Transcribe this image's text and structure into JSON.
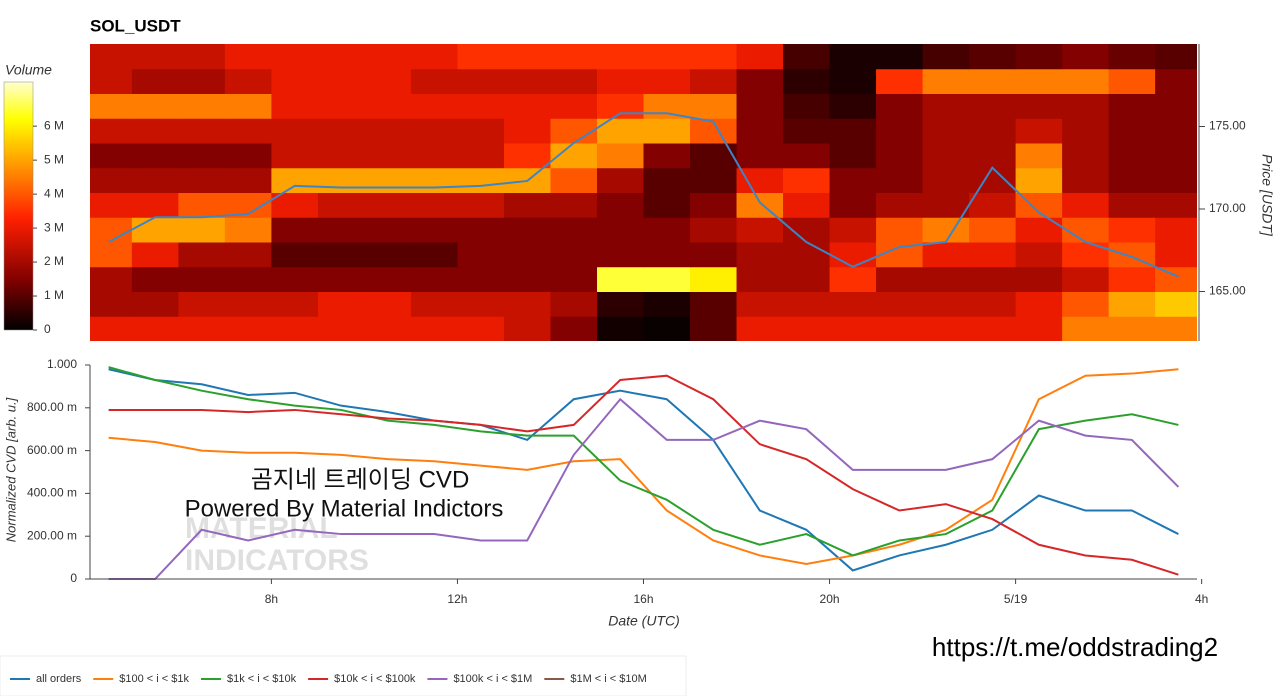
{
  "chart_data": [
    {
      "type": "heatmap",
      "title": "SOL_USDT",
      "y2label": "Price [USDT]",
      "colorbar_label": "Volume",
      "xlim": [
        4.1,
        27.9
      ],
      "ylim": [
        162,
        180
      ],
      "x_bins": [
        4,
        5,
        6,
        7,
        8,
        9,
        10,
        11,
        12,
        13,
        14,
        15,
        16,
        17,
        18,
        19,
        20,
        21,
        22,
        23,
        24,
        25,
        26,
        27,
        28
      ],
      "y_bins": [
        162,
        163.5,
        165,
        166.5,
        168,
        169.5,
        171,
        172.5,
        174,
        175.5,
        177,
        178.5,
        180
      ],
      "yticks": [
        {
          "value": 165,
          "label": "165.00"
        },
        {
          "value": 170,
          "label": "170.00"
        },
        {
          "value": 175,
          "label": "175.00"
        }
      ],
      "zlim": [
        0,
        7.3
      ],
      "zticks": [
        {
          "value": 0,
          "label": "0"
        },
        {
          "value": 1,
          "label": "1 M"
        },
        {
          "value": 2,
          "label": "2 M"
        },
        {
          "value": 3,
          "label": "3 M"
        },
        {
          "value": 4,
          "label": "4 M"
        },
        {
          "value": 5,
          "label": "5 M"
        },
        {
          "value": 6,
          "label": "6 M"
        }
      ],
      "colorscale": [
        [
          0,
          "#000000"
        ],
        [
          0.2,
          "#800000"
        ],
        [
          0.45,
          "#ff2000"
        ],
        [
          0.65,
          "#ff9000"
        ],
        [
          0.85,
          "#ffff00"
        ],
        [
          1,
          "#ffffd0"
        ]
      ],
      "z": [
        [
          3,
          3,
          3,
          3,
          3,
          3,
          3,
          3,
          3,
          2.5,
          1.5,
          0.2,
          0.1,
          1,
          3,
          3,
          3,
          3,
          3,
          3,
          3,
          4.5,
          4.5,
          4.5
        ],
        [
          2,
          2,
          2.5,
          2.5,
          2.5,
          3,
          3,
          2.5,
          2.5,
          2.5,
          2,
          0.5,
          0.3,
          1,
          2.5,
          2.5,
          2.5,
          2.5,
          2.5,
          2.5,
          3,
          4,
          5,
          5.5
        ],
        [
          2,
          1.5,
          1.5,
          1.5,
          1.5,
          1.5,
          1.5,
          1.5,
          1.5,
          1.5,
          1.5,
          6.5,
          6.5,
          6,
          2,
          2,
          3.5,
          2,
          2,
          2,
          2,
          2.5,
          3.5,
          4
        ],
        [
          4,
          3,
          2,
          2,
          1,
          1,
          1,
          1,
          1.5,
          1.5,
          1.5,
          1.5,
          1.5,
          1.5,
          2,
          2,
          3,
          4,
          3,
          3,
          2.5,
          3.5,
          4,
          3
        ],
        [
          4,
          5,
          5,
          4.5,
          1.5,
          1.5,
          1.5,
          1.5,
          1.5,
          1.5,
          1.5,
          1.5,
          1.5,
          2,
          2.5,
          2,
          2.5,
          4,
          4.5,
          4,
          3,
          4,
          3.5,
          3
        ],
        [
          3,
          3,
          4,
          4,
          3,
          2.5,
          2.5,
          2.5,
          2.5,
          2,
          2,
          1.5,
          1,
          1.5,
          4.5,
          3,
          1.5,
          2,
          2,
          2.5,
          4,
          3,
          2,
          2
        ],
        [
          2,
          2,
          2,
          2,
          5,
          5,
          5,
          5,
          5,
          5,
          4,
          2,
          1,
          1,
          3,
          3.5,
          1.5,
          1.5,
          2,
          2,
          5,
          2,
          1.5,
          1.5
        ],
        [
          1.5,
          1.5,
          1.5,
          1.5,
          2.5,
          2.5,
          2.5,
          2.5,
          2.5,
          3.5,
          5,
          4.5,
          1.5,
          1,
          1.5,
          1.5,
          1,
          1.5,
          2,
          2,
          4.5,
          2,
          1.5,
          1.5
        ],
        [
          2.5,
          2.5,
          2.5,
          2.5,
          2.5,
          2.5,
          2.5,
          2.5,
          2.5,
          3,
          4,
          5,
          5,
          4,
          1.5,
          1,
          1,
          1.5,
          2,
          2,
          2.5,
          2,
          1.5,
          1.5
        ],
        [
          4.5,
          4.5,
          4.5,
          4.5,
          3,
          3,
          3,
          3,
          3,
          3,
          3,
          3.5,
          4.5,
          4.5,
          1.5,
          0.8,
          0.5,
          1.5,
          2,
          2,
          2,
          2,
          1.5,
          1.5
        ],
        [
          2.5,
          2,
          2,
          2.5,
          3,
          3,
          3,
          2.5,
          2.5,
          2.5,
          2.5,
          3,
          3,
          2.5,
          1.5,
          0.5,
          0.3,
          3.5,
          4.5,
          4.5,
          4.5,
          4.5,
          4,
          1.5
        ],
        [
          2.5,
          2.5,
          2.5,
          3,
          3,
          3,
          3,
          3,
          3.5,
          3.5,
          3.5,
          3.5,
          3.5,
          3.5,
          3,
          0.8,
          0.3,
          0.3,
          0.8,
          1,
          1.2,
          1.5,
          1.2,
          1
        ]
      ],
      "price_line": {
        "color": "#3d85c6",
        "x": [
          4.5,
          5.5,
          6.5,
          7.5,
          8.5,
          9.5,
          10.5,
          11.5,
          12.5,
          13.5,
          14.5,
          15.5,
          16.5,
          17.5,
          18.5,
          19.5,
          20.5,
          21.5,
          22.5,
          23.5,
          24.5,
          25.5,
          26.5,
          27.5
        ],
        "values": [
          168.0,
          169.5,
          169.5,
          169.7,
          171.4,
          171.3,
          171.3,
          171.3,
          171.4,
          171.7,
          174.0,
          175.8,
          175.8,
          175.3,
          170.4,
          168.0,
          166.5,
          167.7,
          168.0,
          172.5,
          169.8,
          168.0,
          167.1,
          165.9
        ]
      }
    },
    {
      "type": "line",
      "xlabel": "Date (UTC)",
      "ylabel": "Normalized CVD [arb. u.]",
      "xlim": [
        4.1,
        27.9
      ],
      "ylim": [
        0,
        1
      ],
      "xticks": [
        {
          "value": 8,
          "label": "8h"
        },
        {
          "value": 12,
          "label": "12h"
        },
        {
          "value": 16,
          "label": "16h"
        },
        {
          "value": 20,
          "label": "20h"
        },
        {
          "value": 24,
          "label": "5/19"
        },
        {
          "value": 28,
          "label": "4h"
        }
      ],
      "yticks": [
        {
          "value": 0,
          "label": "0"
        },
        {
          "value": 0.2,
          "label": "200.00 m"
        },
        {
          "value": 0.4,
          "label": "400.00 m"
        },
        {
          "value": 0.6,
          "label": "600.00 m"
        },
        {
          "value": 0.8,
          "label": "800.00 m"
        },
        {
          "value": 1,
          "label": "1.000"
        }
      ],
      "annotations": [
        "곰지네 트레이딩 CVD",
        "Powered By Material Indictors"
      ],
      "watermark": [
        "MATERIAL",
        "INDICATORS"
      ],
      "x": [
        4.5,
        5.5,
        6.5,
        7.5,
        8.5,
        9.5,
        10.5,
        11.5,
        12.5,
        13.5,
        14.5,
        15.5,
        16.5,
        17.5,
        18.5,
        19.5,
        20.5,
        21.5,
        22.5,
        23.5,
        24.5,
        25.5,
        26.5,
        27.5
      ],
      "series": [
        {
          "name": "all orders",
          "color": "#1f77b4",
          "values": [
            0.98,
            0.93,
            0.91,
            0.86,
            0.87,
            0.81,
            0.78,
            0.74,
            0.72,
            0.65,
            0.84,
            0.88,
            0.84,
            0.65,
            0.32,
            0.23,
            0.04,
            0.11,
            0.16,
            0.23,
            0.39,
            0.32,
            0.32,
            0.21
          ]
        },
        {
          "name": "$100 < i < $1k",
          "color": "#ff7f0e",
          "values": [
            0.66,
            0.64,
            0.6,
            0.59,
            0.59,
            0.58,
            0.56,
            0.55,
            0.53,
            0.51,
            0.55,
            0.56,
            0.32,
            0.18,
            0.11,
            0.07,
            0.11,
            0.16,
            0.23,
            0.37,
            0.84,
            0.95,
            0.96,
            0.98
          ]
        },
        {
          "name": "$1k < i < $10k",
          "color": "#2ca02c",
          "values": [
            0.99,
            0.93,
            0.88,
            0.84,
            0.81,
            0.79,
            0.74,
            0.72,
            0.69,
            0.67,
            0.67,
            0.46,
            0.37,
            0.23,
            0.16,
            0.21,
            0.11,
            0.18,
            0.21,
            0.32,
            0.7,
            0.74,
            0.77,
            0.72
          ]
        },
        {
          "name": "$10k < i < $100k",
          "color": "#d62728",
          "values": [
            0.79,
            0.79,
            0.79,
            0.78,
            0.79,
            0.77,
            0.75,
            0.74,
            0.72,
            0.69,
            0.72,
            0.93,
            0.95,
            0.84,
            0.63,
            0.56,
            0.42,
            0.32,
            0.35,
            0.28,
            0.16,
            0.11,
            0.09,
            0.02
          ]
        },
        {
          "name": "$100k < i < $1M",
          "color": "#9467bd",
          "values": [
            0,
            0,
            0.23,
            0.18,
            0.23,
            0.21,
            0.21,
            0.21,
            0.18,
            0.18,
            0.58,
            0.84,
            0.65,
            0.65,
            0.74,
            0.7,
            0.51,
            0.51,
            0.51,
            0.56,
            0.74,
            0.67,
            0.65,
            0.43
          ]
        },
        {
          "name": "$1M < i < $10M",
          "color": "#8c564b",
          "values": [
            null,
            null,
            null,
            null,
            null,
            null,
            null,
            null,
            null,
            null,
            null,
            null,
            null,
            null,
            null,
            null,
            null,
            null,
            null,
            null,
            null,
            null,
            null,
            null
          ]
        }
      ]
    }
  ],
  "footer_link": "https://t.me/oddstrading2"
}
